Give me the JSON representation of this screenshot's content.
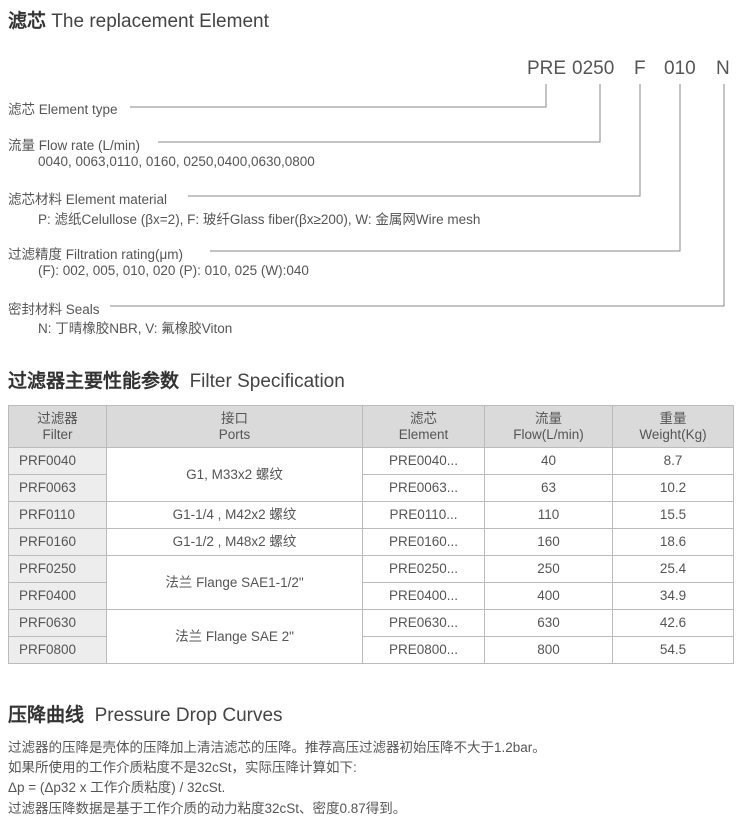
{
  "section1": {
    "title_cn": "滤芯",
    "title_en": "The replacement Element"
  },
  "code": {
    "parts": [
      "PRE",
      "0250",
      "F",
      "010",
      "N"
    ]
  },
  "fields": [
    {
      "label": "滤芯 Element type",
      "detail": ""
    },
    {
      "label": "流量 Flow rate (L/min)",
      "detail": "0040, 0063,0110, 0160, 0250,0400,0630,0800"
    },
    {
      "label": "滤芯材料 Element material",
      "detail": "P: 滤纸Celullose (βx=2),  F: 玻纤Glass fiber(βx≥200),  W: 金属网Wire mesh"
    },
    {
      "label": "过滤精度 Filtration rating(μm)",
      "detail": "(F): 002, 005, 010, 020 (P): 010, 025 (W):040"
    },
    {
      "label": "密封材料 Seals",
      "detail": "N: 丁晴橡胶NBR,  V: 氟橡胶Viton"
    }
  ],
  "section2": {
    "title_cn": "过滤器主要性能参数",
    "title_en": "Filter Specification"
  },
  "table": {
    "headers": [
      [
        "过滤器",
        "Filter"
      ],
      [
        "接口",
        "Ports"
      ],
      [
        "滤芯",
        "Element"
      ],
      [
        "流量",
        "Flow(L/min)"
      ],
      [
        "重量",
        "Weight(Kg)"
      ]
    ],
    "ports": [
      "G1, M33x2 螺纹",
      "G1-1/4 , M42x2  螺纹",
      "G1-1/2 , M48x2 螺纹",
      "法兰 Flange SAE1-1/2\"",
      "法兰 Flange SAE 2\""
    ],
    "rows": [
      [
        "PRF0040",
        "PRE0040...",
        "40",
        "8.7"
      ],
      [
        "PRF0063",
        "PRE0063...",
        "63",
        "10.2"
      ],
      [
        "PRF0110",
        "PRE0110...",
        "110",
        "15.5"
      ],
      [
        "PRF0160",
        "PRE0160...",
        "160",
        "18.6"
      ],
      [
        "PRF0250",
        "PRE0250...",
        "250",
        "25.4"
      ],
      [
        "PRF0400",
        "PRE0400...",
        "400",
        "34.9"
      ],
      [
        "PRF0630",
        "PRE0630...",
        "630",
        "42.6"
      ],
      [
        "PRF0800",
        "PRE0800...",
        "800",
        "54.5"
      ]
    ]
  },
  "section3": {
    "title_cn": "压降曲线",
    "title_en": "Pressure Drop Curves",
    "paragraphs": [
      "过滤器的压降是壳体的压降加上清洁滤芯的压降。推荐高压过滤器初始压降不大于1.2bar。",
      "如果所使用的工作介质粘度不是32cSt，实际压降计算如下:",
      "Δp = (Δp32 x 工作介质粘度) / 32cSt.",
      "过滤器压降数据是基于工作介质的动力粘度32cSt、密度0.87得到。"
    ]
  }
}
